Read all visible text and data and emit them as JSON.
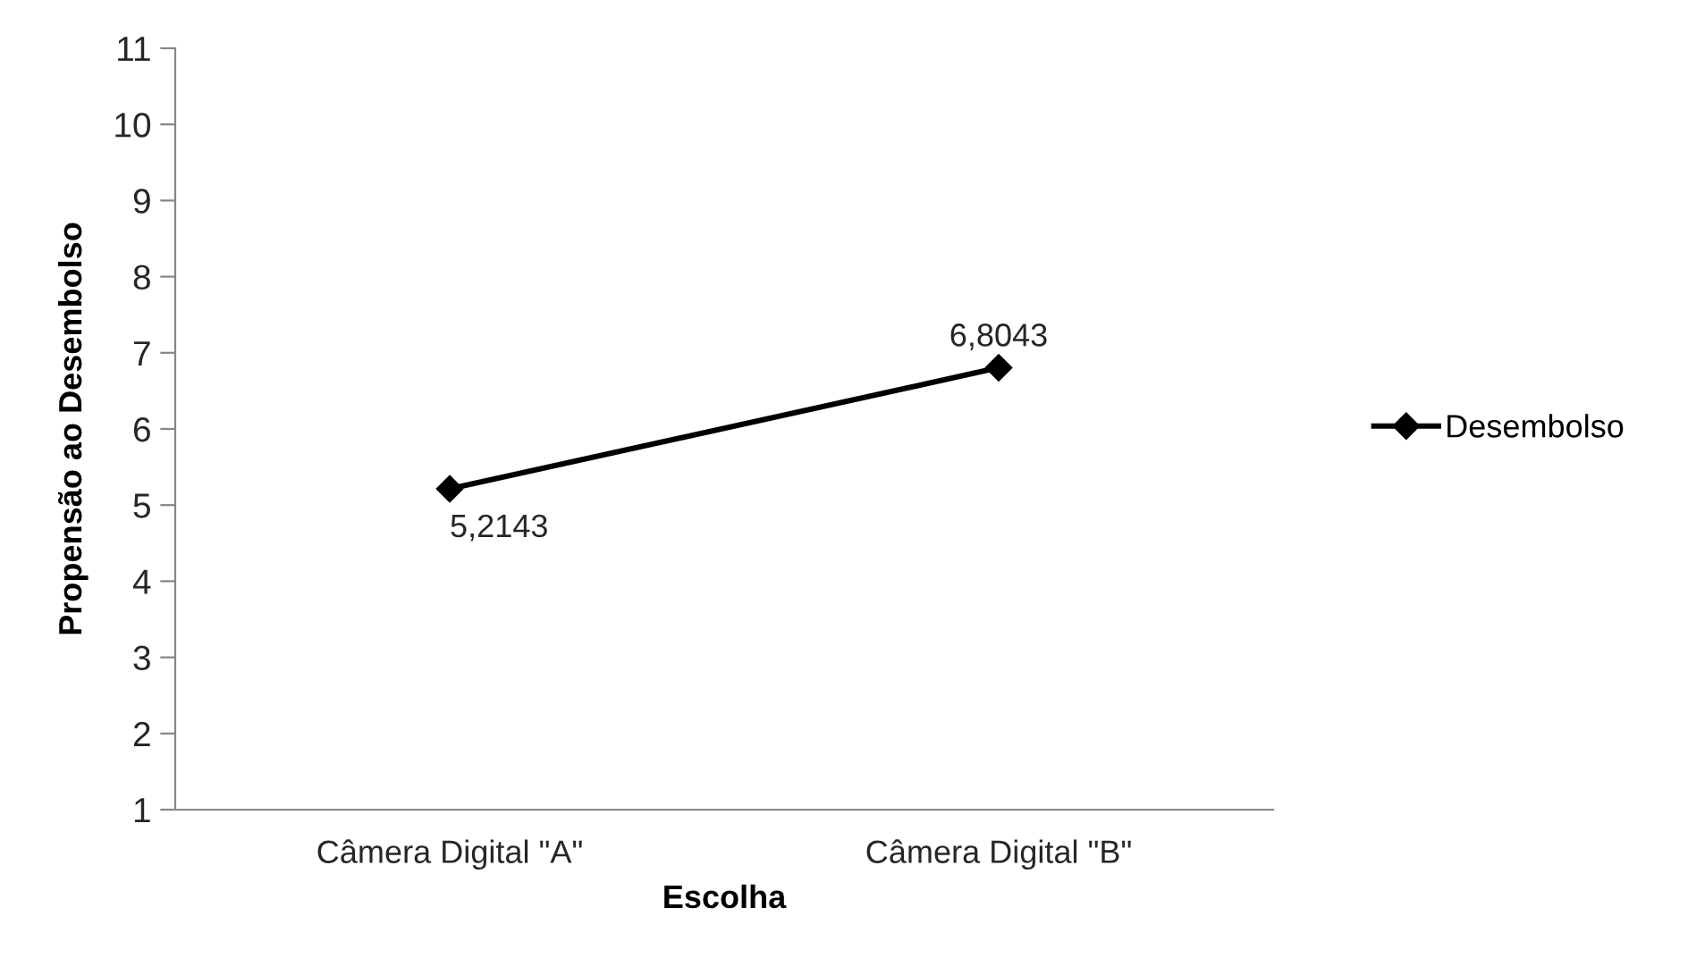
{
  "chart_data": {
    "type": "line",
    "xlabel": "Escolha",
    "ylabel": "Propensão ao Desembolso",
    "categories": [
      "Câmera Digital \"A\"",
      "Câmera Digital \"B\""
    ],
    "series": [
      {
        "name": "Desembolso",
        "color": "#000000",
        "values": [
          5.2143,
          6.8043
        ],
        "value_labels": [
          "5,2143",
          "6,8043"
        ]
      }
    ],
    "ylim": [
      1,
      11
    ],
    "yticks": [
      1,
      2,
      3,
      4,
      5,
      6,
      7,
      8,
      9,
      10,
      11
    ],
    "grid": false,
    "legend": "right",
    "marker": "diamond",
    "line_style": "solid"
  }
}
